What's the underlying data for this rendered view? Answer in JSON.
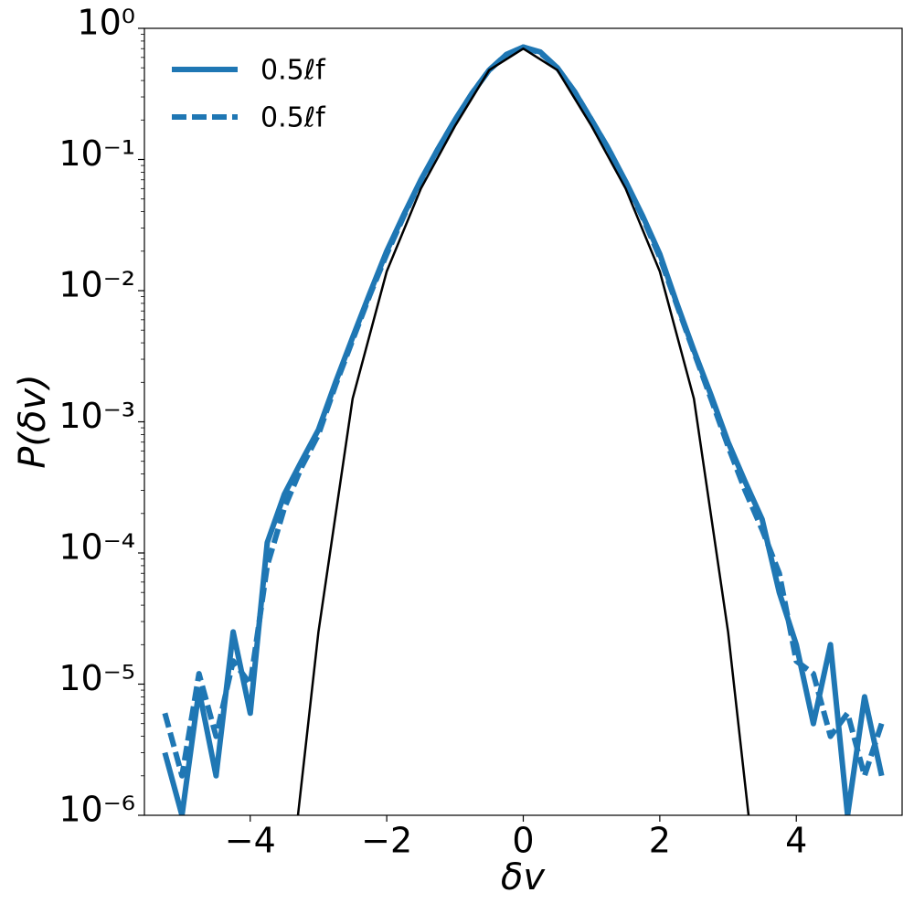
{
  "chart_data": {
    "type": "line",
    "xlabel": "δv",
    "ylabel": "P(δv)",
    "xlim": [
      -5.55,
      5.55
    ],
    "xticks": [
      {
        "value": -4,
        "label": "−4"
      },
      {
        "value": -2,
        "label": "−2"
      },
      0,
      2,
      4
    ],
    "ylim": [
      1e-06,
      1
    ],
    "log_y": true,
    "yticks": [
      {
        "value": 1e-06,
        "label": "10⁻⁶"
      },
      {
        "value": 1e-05,
        "label": "10⁻⁵"
      },
      {
        "value": 0.0001,
        "label": "10⁻⁴"
      },
      {
        "value": 0.001,
        "label": "10⁻³"
      },
      {
        "value": 0.01,
        "label": "10⁻²"
      },
      {
        "value": 0.1,
        "label": "10⁻¹"
      },
      {
        "value": 1,
        "label": "10⁰"
      }
    ],
    "legend": "upper left",
    "series": [
      {
        "name": "0.5ℓf",
        "color": "#1f77b4",
        "style": "solid",
        "x": [
          -5.25,
          -5,
          -4.75,
          -4.5,
          -4.25,
          -4,
          -3.75,
          -3.5,
          -3.25,
          -3,
          -2.75,
          -2.5,
          -2.25,
          -2,
          -1.75,
          -1.5,
          -1.25,
          -1,
          -0.75,
          -0.5,
          -0.25,
          0,
          0.25,
          0.5,
          0.75,
          1,
          1.25,
          1.5,
          1.75,
          2,
          2.25,
          2.5,
          2.75,
          3,
          3.25,
          3.5,
          3.75,
          4,
          4.25,
          4.5,
          4.75,
          5,
          5.25
        ],
        "values": [
          3e-06,
          1e-06,
          9e-06,
          2e-06,
          2.5e-05,
          6e-06,
          0.00012,
          0.00028,
          0.0005,
          0.00087,
          0.002,
          0.0044,
          0.0095,
          0.02,
          0.038,
          0.07,
          0.12,
          0.2,
          0.32,
          0.48,
          0.63,
          0.72,
          0.66,
          0.5,
          0.33,
          0.2,
          0.12,
          0.068,
          0.037,
          0.019,
          0.008,
          0.0035,
          0.0016,
          0.0007,
          0.00035,
          0.00018,
          5e-05,
          2e-05,
          5e-06,
          2e-05,
          1e-06,
          8e-06,
          2e-06
        ]
      },
      {
        "name": "0.5ℓf",
        "color": "#1f77b4",
        "style": "dashed",
        "x": [
          -5.25,
          -5,
          -4.75,
          -4.5,
          -4.25,
          -4,
          -3.75,
          -3.5,
          -3.25,
          -3,
          -2.75,
          -2.5,
          -2.25,
          -2,
          -1.75,
          -1.5,
          -1.25,
          -1,
          -0.75,
          -0.5,
          -0.25,
          0,
          0.25,
          0.5,
          0.75,
          1,
          1.25,
          1.5,
          1.75,
          2,
          2.25,
          2.5,
          2.75,
          3,
          3.25,
          3.5,
          3.75,
          4,
          4.25,
          4.5,
          4.75,
          5,
          5.25
        ],
        "values": [
          6e-06,
          2e-06,
          1.2e-05,
          4e-06,
          1.5e-05,
          1e-05,
          8e-05,
          0.00022,
          0.00045,
          0.0008,
          0.0019,
          0.0042,
          0.0092,
          0.019,
          0.037,
          0.069,
          0.12,
          0.2,
          0.32,
          0.48,
          0.63,
          0.72,
          0.65,
          0.5,
          0.33,
          0.2,
          0.12,
          0.067,
          0.036,
          0.018,
          0.0078,
          0.0034,
          0.0015,
          0.00065,
          0.0003,
          0.00015,
          7e-05,
          1.5e-05,
          1.2e-05,
          4e-06,
          6e-06,
          2e-06,
          5e-06
        ]
      },
      {
        "color": "#000000",
        "style": "solid",
        "x": [
          -3.3,
          -3,
          -2.5,
          -2,
          -1.5,
          -1,
          -0.5,
          0,
          0.5,
          1,
          1.5,
          2,
          2.5,
          3,
          3.3
        ],
        "values": [
          1e-06,
          2.5e-05,
          0.0015,
          0.014,
          0.06,
          0.18,
          0.48,
          0.7,
          0.48,
          0.18,
          0.06,
          0.014,
          0.0015,
          2.5e-05,
          1e-06
        ]
      }
    ]
  }
}
